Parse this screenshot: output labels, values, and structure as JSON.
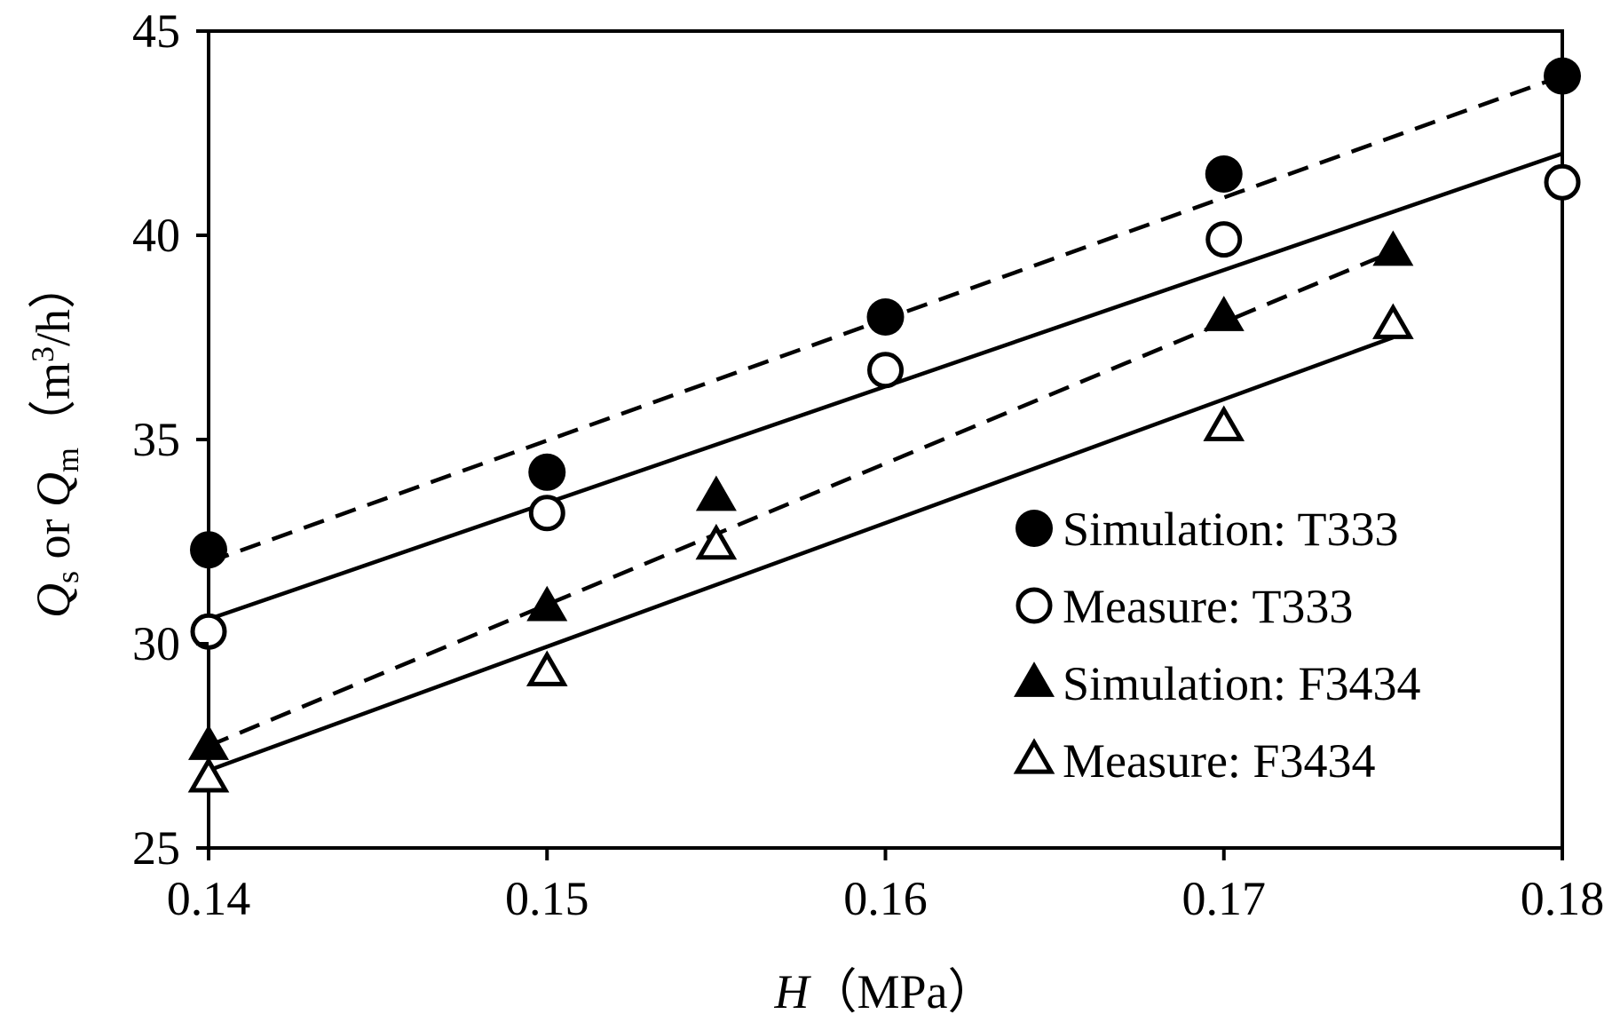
{
  "chart_data": {
    "type": "scatter",
    "xlabel": {
      "var": "H",
      "unit": "（MPa）"
    },
    "ylabel": {
      "q1": "Q",
      "sub1": "s",
      "or": " or ",
      "q2": "Q",
      "sub2": "m",
      "unit_pre": "（m",
      "unit_sup": "3",
      "unit_post": "/h）"
    },
    "xlim": [
      0.14,
      0.18
    ],
    "ylim": [
      25,
      45
    ],
    "xticks": [
      "0.14",
      "0.15",
      "0.16",
      "0.17",
      "0.18"
    ],
    "yticks": [
      "25",
      "30",
      "35",
      "40",
      "45"
    ],
    "legend_position": "lower-right",
    "series": [
      {
        "name": "Simulation: T333",
        "marker": "circle-filled",
        "x": [
          0.14,
          0.15,
          0.16,
          0.17,
          0.18
        ],
        "y": [
          32.3,
          34.2,
          38.0,
          41.5,
          43.9
        ],
        "fit": {
          "style": "dashed",
          "x": [
            0.14,
            0.18
          ],
          "y": [
            32.0,
            43.9
          ]
        }
      },
      {
        "name": "Measure: T333",
        "marker": "circle-open",
        "x": [
          0.14,
          0.15,
          0.16,
          0.17,
          0.18
        ],
        "y": [
          30.3,
          33.2,
          36.7,
          39.9,
          41.3
        ],
        "fit": {
          "style": "solid",
          "x": [
            0.14,
            0.18
          ],
          "y": [
            30.6,
            42.0
          ]
        }
      },
      {
        "name": "Simulation: F3434",
        "marker": "triangle-filled",
        "x": [
          0.14,
          0.15,
          0.155,
          0.17,
          0.175
        ],
        "y": [
          27.5,
          30.9,
          33.6,
          38.0,
          39.6
        ],
        "fit": {
          "style": "dashed",
          "x": [
            0.14,
            0.175
          ],
          "y": [
            27.5,
            39.6
          ]
        }
      },
      {
        "name": "Measure: F3434",
        "marker": "triangle-open",
        "x": [
          0.14,
          0.15,
          0.155,
          0.17,
          0.175
        ],
        "y": [
          26.7,
          29.3,
          32.4,
          35.3,
          37.8
        ],
        "fit": {
          "style": "solid",
          "x": [
            0.14,
            0.175
          ],
          "y": [
            26.9,
            37.5
          ]
        }
      }
    ]
  }
}
